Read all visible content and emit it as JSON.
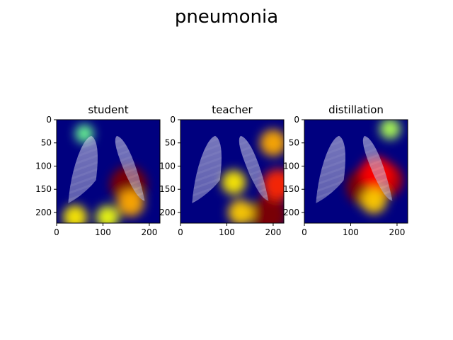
{
  "figure": {
    "suptitle": "pneumonia"
  },
  "chart_data": [
    {
      "type": "heatmap",
      "title": "student",
      "xlabel": "",
      "ylabel": "",
      "xlim": [
        0,
        223
      ],
      "ylim": [
        223,
        0
      ],
      "x_ticks": [
        0,
        100,
        200
      ],
      "y_ticks": [
        0,
        50,
        100,
        150,
        200
      ],
      "grid": false,
      "colormap": "jet",
      "overlay": "chest x-ray",
      "hotspots": [
        {
          "x": 155,
          "y": 140,
          "intensity": 1.0
        },
        {
          "x": 160,
          "y": 180,
          "intensity": 0.55
        },
        {
          "x": 40,
          "y": 210,
          "intensity": 0.45
        },
        {
          "x": 110,
          "y": 210,
          "intensity": 0.4
        },
        {
          "x": 60,
          "y": 30,
          "intensity": 0.2
        }
      ]
    },
    {
      "type": "heatmap",
      "title": "teacher",
      "xlabel": "",
      "ylabel": "",
      "xlim": [
        0,
        223
      ],
      "ylim": [
        223,
        0
      ],
      "x_ticks": [
        0,
        100,
        200
      ],
      "y_ticks": [
        0,
        50,
        100,
        150,
        200
      ],
      "grid": false,
      "colormap": "jet",
      "overlay": "chest x-ray",
      "hotspots": [
        {
          "x": 190,
          "y": 205,
          "intensity": 1.0
        },
        {
          "x": 210,
          "y": 140,
          "intensity": 0.75
        },
        {
          "x": 200,
          "y": 50,
          "intensity": 0.55
        },
        {
          "x": 115,
          "y": 135,
          "intensity": 0.45
        },
        {
          "x": 130,
          "y": 200,
          "intensity": 0.5
        }
      ]
    },
    {
      "type": "heatmap",
      "title": "distillation",
      "xlabel": "",
      "ylabel": "",
      "xlim": [
        0,
        223
      ],
      "ylim": [
        223,
        0
      ],
      "x_ticks": [
        0,
        100,
        200
      ],
      "y_ticks": [
        0,
        50,
        100,
        150,
        200
      ],
      "grid": false,
      "colormap": "jet",
      "overlay": "chest x-ray",
      "hotspots": [
        {
          "x": 130,
          "y": 145,
          "intensity": 1.0
        },
        {
          "x": 175,
          "y": 130,
          "intensity": 0.9
        },
        {
          "x": 155,
          "y": 115,
          "intensity": 0.8
        },
        {
          "x": 150,
          "y": 175,
          "intensity": 0.5
        },
        {
          "x": 185,
          "y": 20,
          "intensity": 0.3
        }
      ]
    }
  ]
}
